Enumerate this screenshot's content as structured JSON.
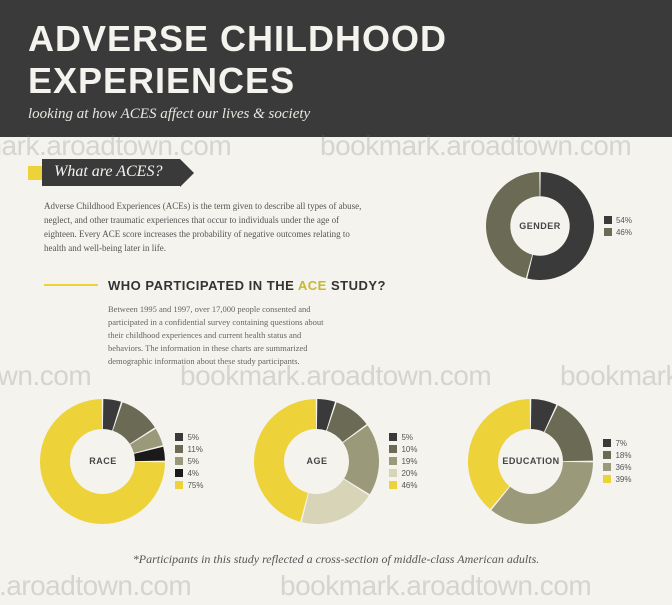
{
  "header": {
    "title": "ADVERSE CHILDHOOD EXPERIENCES",
    "subtitle": "looking at how ACES affect our lives & society",
    "bg_color": "#3a3a3a",
    "text_color": "#f5f3ee",
    "title_fontsize": 36,
    "subtitle_fontsize": 15
  },
  "section1": {
    "label": "What are ACES?",
    "accent_color": "#eed23a",
    "bar_color": "#3a3a3a",
    "body": "Adverse Childhood Experiences (ACEs) is the term given to describe all types of abuse, neglect, and other traumatic experiences that occur to individuals under the age of eighteen. Every ACE score increases the probability of negative outcomes relating to health and well-being later in life."
  },
  "section2": {
    "title_pre": "WHO PARTICIPATED IN THE ",
    "title_accent": "ACE",
    "title_post": " STUDY?",
    "body": "Between 1995 and 1997, over 17,000 people consented and participated in a confidential survey containing questions about their childhood experiences and current health status and behaviors. The information in these charts are summarized demographic information about these study participants."
  },
  "palette": {
    "yellow": "#eed23a",
    "dark": "#3a3a3a",
    "olive": "#6b6b55",
    "light_olive": "#9a9a7a",
    "cream": "#d8d4b8",
    "pale": "#e8e4d0",
    "black": "#1a1a1a",
    "bg": "#f5f3ee"
  },
  "gender_chart": {
    "type": "donut",
    "label": "GENDER",
    "size": 108,
    "inner_ratio": 0.55,
    "slices": [
      {
        "label": "54%",
        "value": 54,
        "color": "#3a3a3a"
      },
      {
        "label": "46%",
        "value": 46,
        "color": "#6b6b55"
      }
    ]
  },
  "race_chart": {
    "type": "donut",
    "label": "RACE",
    "size": 125,
    "inner_ratio": 0.52,
    "slices": [
      {
        "label": "5%",
        "value": 5,
        "color": "#3a3a3a"
      },
      {
        "label": "11%",
        "value": 11,
        "color": "#6b6b55"
      },
      {
        "label": "5%",
        "value": 5,
        "color": "#9a9a7a"
      },
      {
        "label": "4%",
        "value": 4,
        "color": "#1a1a1a"
      },
      {
        "label": "75%",
        "value": 75,
        "color": "#eed23a"
      }
    ]
  },
  "age_chart": {
    "type": "donut",
    "label": "AGE",
    "size": 125,
    "inner_ratio": 0.52,
    "slices": [
      {
        "label": "5%",
        "value": 5,
        "color": "#3a3a3a"
      },
      {
        "label": "10%",
        "value": 10,
        "color": "#6b6b55"
      },
      {
        "label": "19%",
        "value": 19,
        "color": "#9a9a7a"
      },
      {
        "label": "20%",
        "value": 20,
        "color": "#d8d4b8"
      },
      {
        "label": "46%",
        "value": 46,
        "color": "#eed23a"
      }
    ]
  },
  "education_chart": {
    "type": "donut",
    "label": "EDUCATION",
    "size": 125,
    "inner_ratio": 0.52,
    "slices": [
      {
        "label": "7%",
        "value": 7,
        "color": "#3a3a3a"
      },
      {
        "label": "18%",
        "value": 18,
        "color": "#6b6b55"
      },
      {
        "label": "36%",
        "value": 36,
        "color": "#9a9a7a"
      },
      {
        "label": "39%",
        "value": 39,
        "color": "#eed23a"
      }
    ]
  },
  "footnote": "*Participants in this study reflected a cross-section of middle-class American adults.",
  "watermark_text": "bookmark.aroadtown.com"
}
